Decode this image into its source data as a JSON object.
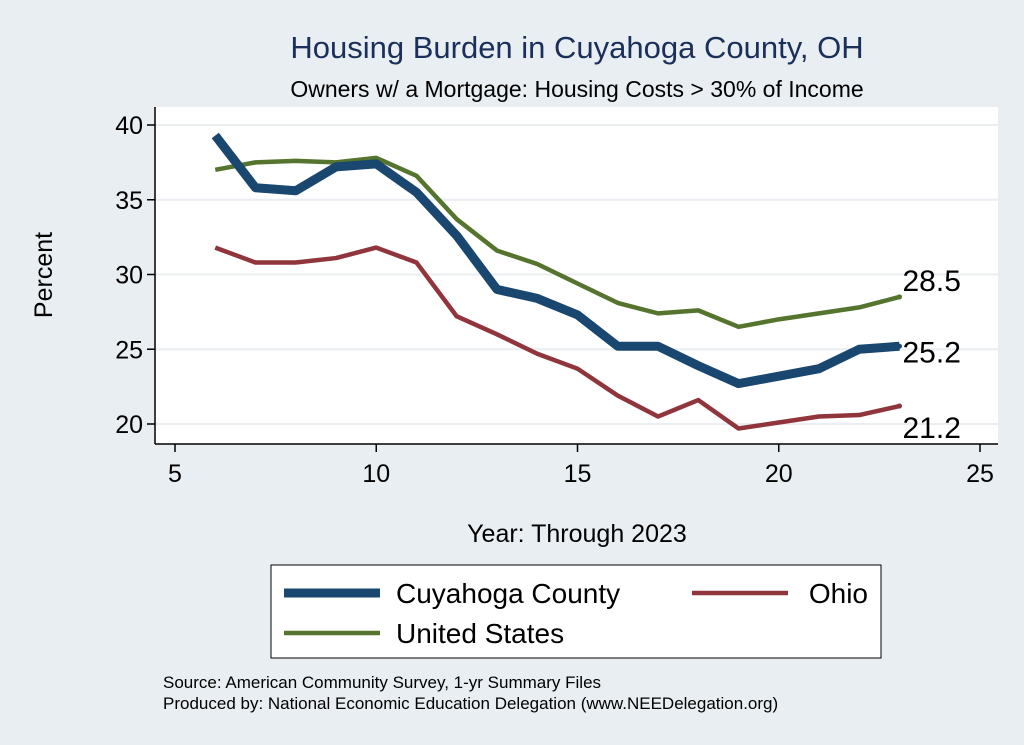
{
  "chart_data": {
    "type": "line",
    "title": "Housing Burden in Cuyahoga County, OH",
    "subtitle": "Owners w/ a Mortgage: Housing Costs > 30% of Income",
    "xlabel": "Year: Through 2023",
    "ylabel": "Percent",
    "xlim": [
      5,
      25
    ],
    "ylim": [
      19,
      41
    ],
    "xticks": [
      "5",
      "10",
      "15",
      "20",
      "25"
    ],
    "yticks": [
      "20",
      "25",
      "30",
      "35",
      "40"
    ],
    "grid": true,
    "legend_position": "bottom",
    "x": [
      6,
      7,
      8,
      9,
      10,
      11,
      12,
      13,
      14,
      15,
      16,
      17,
      18,
      19,
      20,
      21,
      22,
      23
    ],
    "series": [
      {
        "name": "Cuyahoga County",
        "color": "#1a476f",
        "values": [
          39.3,
          35.8,
          35.6,
          37.2,
          37.4,
          35.5,
          32.6,
          29.0,
          28.4,
          27.3,
          25.2,
          25.2,
          23.9,
          22.7,
          23.2,
          23.7,
          25.0,
          25.2
        ],
        "end_label": "25.2"
      },
      {
        "name": "Ohio",
        "color": "#90353b",
        "values": [
          31.8,
          30.8,
          30.8,
          31.1,
          31.8,
          30.8,
          27.2,
          26.0,
          24.7,
          23.7,
          21.9,
          20.5,
          21.6,
          19.7,
          20.1,
          20.5,
          20.6,
          21.2
        ],
        "end_label": "21.2"
      },
      {
        "name": "United States",
        "color": "#55752f",
        "values": [
          37.0,
          37.5,
          37.6,
          37.5,
          37.8,
          36.6,
          33.7,
          31.6,
          30.7,
          29.4,
          28.1,
          27.4,
          27.6,
          26.5,
          27.0,
          27.4,
          27.8,
          28.5
        ],
        "end_label": "28.5"
      }
    ]
  },
  "notes": {
    "source": "Source: American Community Survey, 1-yr Summary Files",
    "produced_by": "Produced by: National Economic Education Delegation (www.NEEDelegation.org)"
  }
}
